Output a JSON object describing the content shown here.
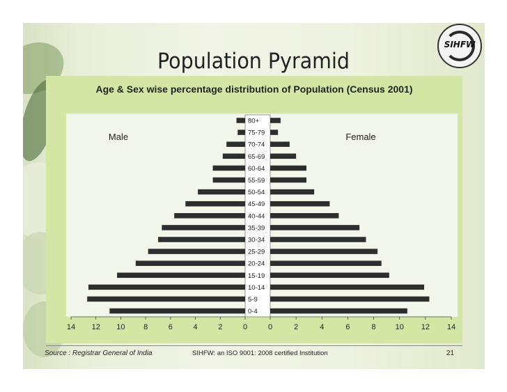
{
  "slide": {
    "title": "Population Pyramid",
    "logo_text": "SIHFW",
    "footer": {
      "source": "Source :  Registrar General of India",
      "institution": "SIHFW: an ISO 9001: 2008 certified Institution",
      "page_number": "21"
    }
  },
  "colors": {
    "bar": "#2e2e2e",
    "panel": "#d4e6a4",
    "plot_area": "#f3f6ea"
  },
  "chart_data": {
    "type": "bar",
    "orientation": "horizontal-pyramid",
    "title": "Age & Sex wise percentage distribution of Population (Census 2001)",
    "categories": [
      "80+",
      "75-79",
      "70-74",
      "65-69",
      "60-64",
      "55-59",
      "50-54",
      "45-49",
      "40-44",
      "35-39",
      "30-34",
      "25-29",
      "20-24",
      "15-19",
      "10-14",
      "5-9",
      "0-4"
    ],
    "series": [
      {
        "name": "Male",
        "values": [
          0.7,
          0.6,
          1.5,
          1.8,
          2.6,
          2.6,
          3.8,
          4.8,
          5.7,
          6.7,
          7.0,
          7.8,
          8.8,
          10.3,
          12.6,
          12.7,
          10.9
        ]
      },
      {
        "name": "Female",
        "values": [
          0.8,
          0.6,
          1.5,
          2.0,
          2.8,
          2.8,
          3.4,
          4.6,
          5.3,
          6.9,
          7.4,
          8.3,
          8.6,
          9.2,
          11.9,
          12.3,
          10.6
        ]
      }
    ],
    "x_ticks_left": [
      "14",
      "12",
      "10",
      "8",
      "6",
      "4",
      "2",
      "0"
    ],
    "x_ticks_right": [
      "0",
      "2",
      "4",
      "6",
      "8",
      "10",
      "12",
      "14"
    ],
    "xlim": [
      0,
      14
    ],
    "grid": false,
    "legend": "none"
  }
}
